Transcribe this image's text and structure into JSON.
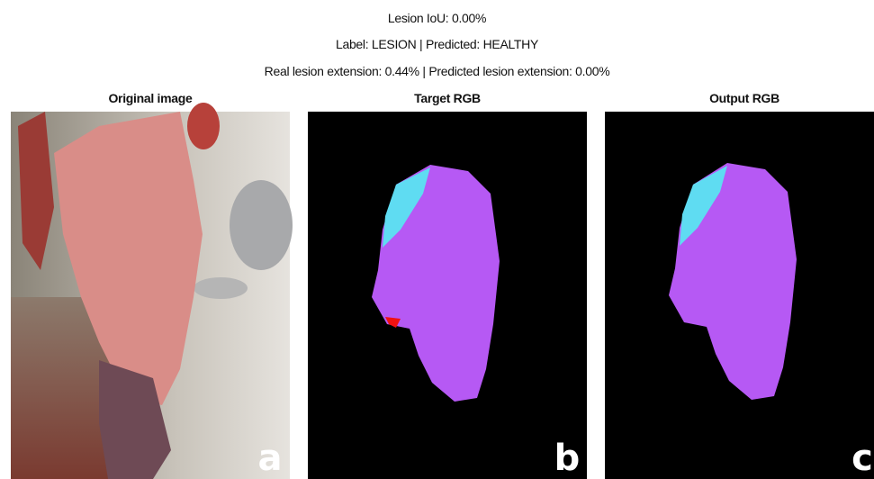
{
  "header": {
    "lines": [
      "Lesion IoU: 0.00%",
      "Label: LESION | Predicted: HEALTHY",
      "Real lesion extension: 0.44% | Predicted lesion extension: 0.00%"
    ]
  },
  "panels": [
    {
      "title": "Original image",
      "letter": "a"
    },
    {
      "title": "Target RGB",
      "letter": "b"
    },
    {
      "title": "Output RGB",
      "letter": "c"
    }
  ]
}
